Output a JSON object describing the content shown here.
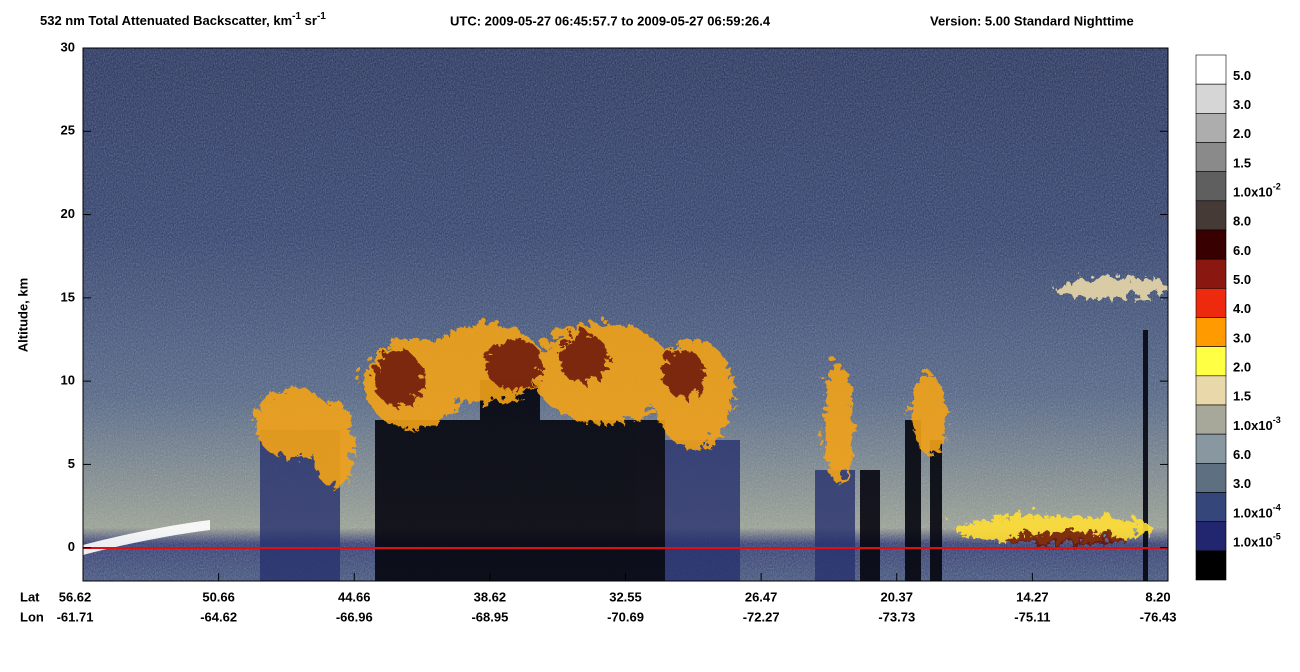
{
  "chart_data": {
    "type": "heatmap",
    "title": [
      {
        "text": "532 nm Total Attenuated Backscatter, km"
      },
      {
        "sup": "-1"
      },
      {
        "text": " sr"
      },
      {
        "sup": "-1"
      }
    ],
    "utc": "UTC:  2009-05-27 06:45:57.7  to  2009-05-27 06:59:26.4",
    "version": "Version: 5.00  Standard  Nighttime",
    "y_label": "Altitude, km",
    "ylim": [
      -2,
      30
    ],
    "yticks": [
      0,
      5,
      10,
      15,
      20,
      25,
      30
    ],
    "lat_label": "Lat",
    "lon_label": "Lon",
    "lat": [
      "56.62",
      "50.66",
      "44.66",
      "38.62",
      "32.55",
      "26.47",
      "20.37",
      "14.27",
      "8.20"
    ],
    "lon": [
      "-61.71",
      "-64.62",
      "-66.96",
      "-68.95",
      "-70.69",
      "-72.27",
      "-73.73",
      "-75.11",
      "-76.43"
    ],
    "colorbar": {
      "colors": [
        "#ffffff",
        "#d6d6d6",
        "#adadad",
        "#8a8a8a",
        "#5f5f5f",
        "#463a36",
        "#380000",
        "#8a1810",
        "#ee2a0e",
        "#ff9a00",
        "#ffff44",
        "#e9d9aa",
        "#a7a899",
        "#8897a0",
        "#5e6f82",
        "#35467a",
        "#22266e",
        "#000000"
      ],
      "labels": [
        {
          "text": "5.0"
        },
        {
          "text": "3.0"
        },
        {
          "text": "2.0"
        },
        {
          "text": "1.5"
        },
        {
          "text": "1.0x10",
          "sup": "-2"
        },
        {
          "text": "8.0"
        },
        {
          "text": "6.0"
        },
        {
          "text": "5.0"
        },
        {
          "text": "4.0"
        },
        {
          "text": "3.0"
        },
        {
          "text": "2.0"
        },
        {
          "text": "1.5"
        },
        {
          "text": "1.0x10",
          "sup": "-3"
        },
        {
          "text": "6.0"
        },
        {
          "text": "3.0"
        },
        {
          "text": "1.0x10",
          "sup": "-4"
        },
        {
          "text": "1.0x10",
          "sup": "-5"
        }
      ]
    }
  }
}
